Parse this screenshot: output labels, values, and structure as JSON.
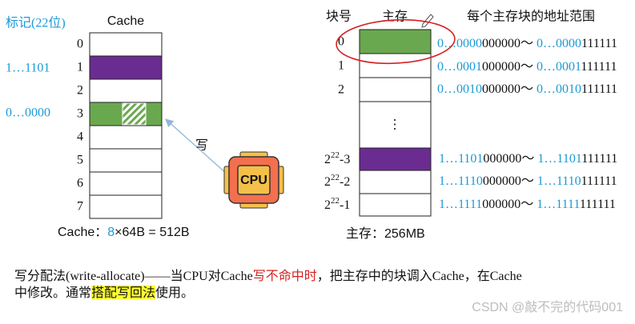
{
  "cache": {
    "tag_label": "标记(22位)",
    "title": "Cache",
    "rows": [
      "0",
      "1",
      "2",
      "3",
      "4",
      "5",
      "6",
      "7"
    ],
    "tags": [
      {
        "row": "1",
        "tag": "1…1101"
      },
      {
        "row": "3",
        "tag": "0…0000"
      }
    ],
    "size": {
      "prefix": "Cache：",
      "count": "8",
      "suffix": "×64B = 512B"
    }
  },
  "write_label": "写",
  "cpu_label": "CPU",
  "memory": {
    "block_header": "块号",
    "title": "主存",
    "range_header": "每个主存块的地址范围",
    "top_rows": [
      "0",
      "1",
      "2"
    ],
    "ellipsis": "⋮",
    "bottom_rows": [
      {
        "base": "2",
        "exp": "22",
        "rest": "-3"
      },
      {
        "base": "2",
        "exp": "22",
        "rest": "-2"
      },
      {
        "base": "2",
        "exp": "22",
        "rest": "-1"
      }
    ],
    "separator": "～",
    "ranges": [
      {
        "start_tag": "0…0000",
        "start_offset": "000000",
        "end_tag": "0…0000",
        "end_offset": "111111"
      },
      {
        "start_tag": "0…0001",
        "start_offset": "000000",
        "end_tag": "0…0001",
        "end_offset": "111111"
      },
      {
        "start_tag": "0…0010",
        "start_offset": "000000",
        "end_tag": "0…0010",
        "end_offset": "111111"
      },
      {
        "start_tag": "1…1101",
        "start_offset": "000000",
        "end_tag": "1…1101",
        "end_offset": "111111"
      },
      {
        "start_tag": "1…1110",
        "start_offset": "000000",
        "end_tag": "1…1110",
        "end_offset": "111111"
      },
      {
        "start_tag": "1…1111",
        "start_offset": "000000",
        "end_tag": "1…1111",
        "end_offset": "111111"
      }
    ],
    "size": "主存：256MB"
  },
  "paragraph": {
    "line1": [
      "写分配法(write-allocate)——当CPU对Cache",
      "写不命中时",
      "，把主存中的块调入Cache，在Cache"
    ],
    "line2": [
      "中修改。通常",
      "搭配写回法",
      "使用。"
    ]
  },
  "watermark": "CSDN @敲不完的代码001"
}
